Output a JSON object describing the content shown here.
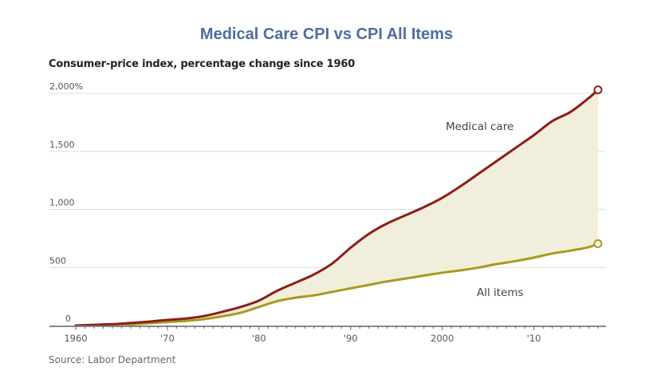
{
  "chart_data": {
    "type": "line",
    "title": "Medical Care CPI vs CPI All Items",
    "subtitle": "Consumer-price index, percentage change since 1960",
    "source": "Source: Labor Department",
    "xlabel": "",
    "ylabel": "",
    "xlim": [
      1960,
      2017
    ],
    "ylim": [
      0,
      2000
    ],
    "grid": true,
    "y_ticks": [
      {
        "value": 0,
        "label": "0"
      },
      {
        "value": 500,
        "label": "500"
      },
      {
        "value": 1000,
        "label": "1,000"
      },
      {
        "value": 1500,
        "label": "1,500"
      },
      {
        "value": 2000,
        "label": "2,000%"
      }
    ],
    "x_ticks": [
      {
        "value": 1960,
        "label": "1960"
      },
      {
        "value": 1970,
        "label": "'70"
      },
      {
        "value": 1980,
        "label": "'80"
      },
      {
        "value": 1990,
        "label": "'90"
      },
      {
        "value": 2000,
        "label": "2000"
      },
      {
        "value": 2010,
        "label": "'10"
      }
    ],
    "x": [
      1960,
      1962,
      1964,
      1966,
      1968,
      1970,
      1972,
      1974,
      1976,
      1978,
      1980,
      1982,
      1984,
      1986,
      1988,
      1990,
      1992,
      1994,
      1996,
      1998,
      2000,
      2002,
      2004,
      2006,
      2008,
      2010,
      2012,
      2014,
      2016,
      2017
    ],
    "series": [
      {
        "name": "Medical care",
        "color": "#8b1e17",
        "values": [
          0,
          6,
          12,
          22,
          34,
          48,
          60,
          82,
          118,
          160,
          215,
          300,
          370,
          440,
          535,
          670,
          790,
          880,
          950,
          1020,
          1100,
          1200,
          1310,
          1420,
          1530,
          1640,
          1760,
          1840,
          1960,
          2030
        ]
      },
      {
        "name": "All items",
        "color": "#a89a1e",
        "values": [
          0,
          2,
          5,
          10,
          20,
          30,
          40,
          55,
          80,
          110,
          160,
          210,
          240,
          260,
          290,
          320,
          350,
          380,
          405,
          430,
          455,
          475,
          500,
          530,
          555,
          585,
          620,
          645,
          675,
          705
        ]
      }
    ],
    "annotations": [
      {
        "text": "Medical care",
        "series": "Medical care"
      },
      {
        "text": "All items",
        "series": "All items"
      }
    ],
    "fill_between": {
      "color": "#f1eedc"
    }
  }
}
